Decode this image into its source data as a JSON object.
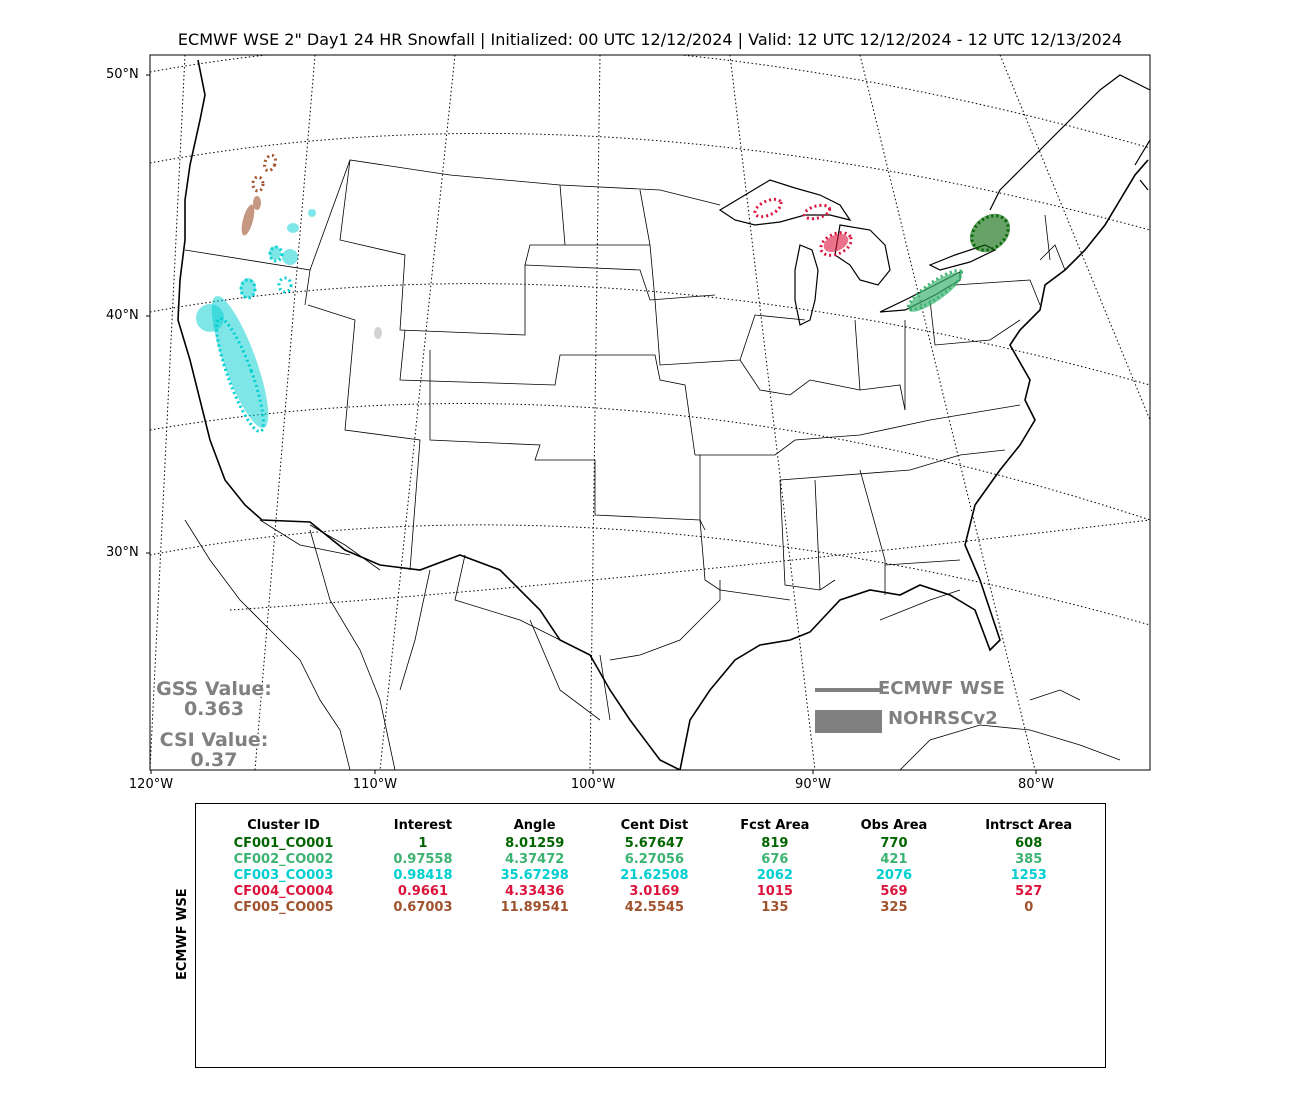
{
  "title": "ECMWF WSE 2\" Day1 24 HR Snowfall | Initialized: 00 UTC 12/12/2024 | Valid: 12 UTC 12/12/2024 - 12 UTC 12/13/2024",
  "lat_labels": [
    "50°N",
    "40°N",
    "30°N"
  ],
  "lon_labels": [
    "120°W",
    "110°W",
    "100°W",
    "90°W",
    "80°W"
  ],
  "scores": {
    "gss_label": "GSS Value:",
    "gss_value": "0.363",
    "csi_label": "CSI Value:",
    "csi_value": "0.37"
  },
  "legend": {
    "line_label": "ECMWF WSE",
    "fill_label": "NOHRSCv2",
    "color": "#808080"
  },
  "table": {
    "side_label": "ECMWF WSE",
    "headers": [
      "Cluster ID",
      "Interest",
      "Angle",
      "Cent Dist",
      "Fcst Area",
      "Obs Area",
      "Intrsct Area"
    ],
    "rows": [
      {
        "color": "#006400",
        "cells": [
          "CF001_CO001",
          "1",
          "8.01259",
          "5.67647",
          "819",
          "770",
          "608"
        ]
      },
      {
        "color": "#3cb371",
        "cells": [
          "CF002_CO002",
          "0.97558",
          "4.37472",
          "6.27056",
          "676",
          "421",
          "385"
        ]
      },
      {
        "color": "#00ced1",
        "cells": [
          "CF003_CO003",
          "0.98418",
          "35.67298",
          "21.62508",
          "2062",
          "2076",
          "1253"
        ]
      },
      {
        "color": "#dc143c",
        "cells": [
          "CF004_CO004",
          "0.9661",
          "4.33436",
          "3.0169",
          "1015",
          "569",
          "527"
        ]
      },
      {
        "color": "#a0522d",
        "cells": [
          "CF005_CO005",
          "0.67003",
          "11.89541",
          "42.5545",
          "135",
          "325",
          "0"
        ]
      }
    ]
  }
}
